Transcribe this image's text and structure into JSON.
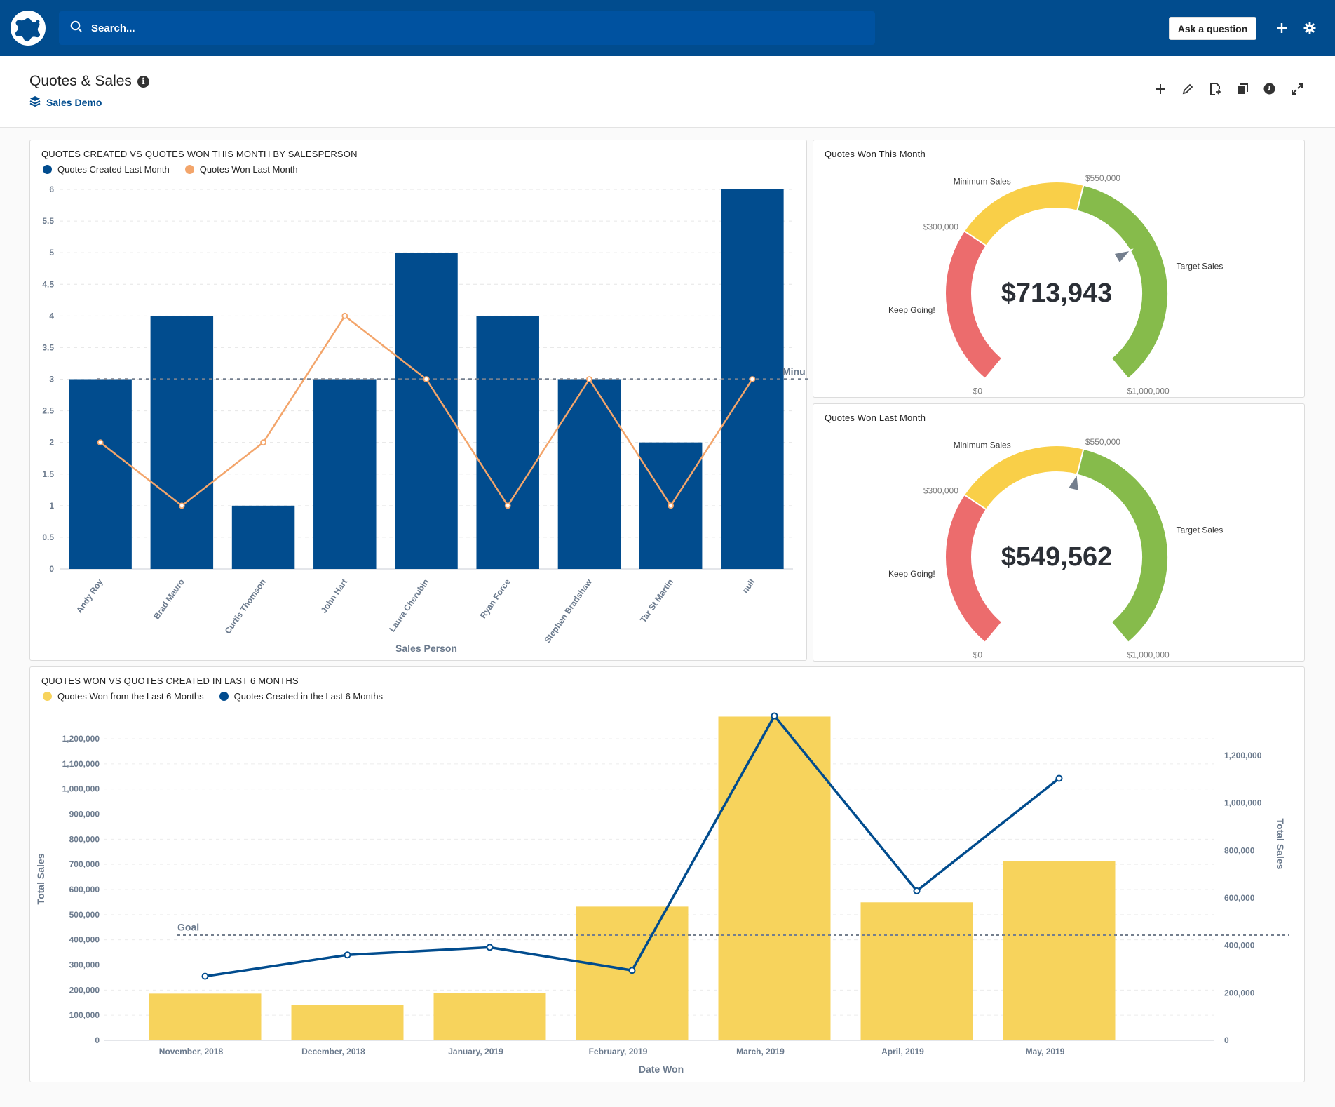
{
  "topbar": {
    "search_placeholder": "Search...",
    "ask_label": "Ask a question",
    "icons": [
      "add-icon",
      "gear-icon"
    ]
  },
  "header": {
    "title": "Quotes & Sales",
    "collection": "Sales Demo",
    "actions": [
      "add-icon",
      "pencil-icon",
      "share-icon",
      "duplicate-icon",
      "clock-icon",
      "fullscreen-icon"
    ]
  },
  "colors": {
    "brand": "#014c8e",
    "bar_blue": "#014c8e",
    "line_orange": "#f3a56b",
    "bar_yellow": "#f7d35c",
    "gauge_red": "#ec6c6d",
    "gauge_yellow": "#f9cf48",
    "gauge_green": "#86bb4b",
    "pointer": "#747f8e"
  },
  "chart_data": [
    {
      "type": "bar",
      "title": "QUOTES CREATED VS QUOTES WON THIS MONTH BY SALESPERSON",
      "xlabel": "Sales Person",
      "ylabel": "",
      "ylim": [
        0,
        6
      ],
      "yticks": [
        "0",
        "0.5",
        "1",
        "1.5",
        "2",
        "2.5",
        "3",
        "3.5",
        "4",
        "4.5",
        "5",
        "5.5",
        "6"
      ],
      "categories": [
        "Andy Roy",
        "Brad Mauro",
        "Curtis Thomson",
        "John Hart",
        "Laura Cherubin",
        "Ryan Force",
        "Stephen Bradshaw",
        "Tar St Martin",
        "null"
      ],
      "series": [
        {
          "name": "Quotes Created Last Month",
          "type": "bar",
          "values": [
            3,
            4,
            1,
            3,
            5,
            4,
            3,
            2,
            6
          ]
        },
        {
          "name": "Quotes Won Last Month",
          "type": "line",
          "values": [
            2,
            1,
            2,
            4,
            3,
            1,
            3,
            1,
            3
          ]
        }
      ],
      "reference_line": {
        "label": "Minu",
        "value": 3
      },
      "grid": true,
      "legend": "top-left"
    },
    {
      "type": "gauge",
      "title": "Quotes Won This Month",
      "value": 713943,
      "value_label": "$713,943",
      "range": [
        0,
        1000000
      ],
      "segments": [
        {
          "label": "Keep Going!",
          "from": 0,
          "to": 300000
        },
        {
          "label": "Minimum Sales",
          "from": 300000,
          "to": 550000
        },
        {
          "label": "Target Sales",
          "from": 550000,
          "to": 1000000
        }
      ],
      "tick_labels": [
        "$0",
        "$300,000",
        "$550,000",
        "$1,000,000"
      ]
    },
    {
      "type": "gauge",
      "title": "Quotes Won Last Month",
      "value": 549562,
      "value_label": "$549,562",
      "range": [
        0,
        1000000
      ],
      "segments": [
        {
          "label": "Keep Going!",
          "from": 0,
          "to": 300000
        },
        {
          "label": "Minimum Sales",
          "from": 300000,
          "to": 550000
        },
        {
          "label": "Target Sales",
          "from": 550000,
          "to": 1000000
        }
      ],
      "tick_labels": [
        "$0",
        "$300,000",
        "$550,000",
        "$1,000,000"
      ]
    },
    {
      "type": "bar",
      "title": "QUOTES WON VS QUOTES CREATED IN LAST 6 MONTHS",
      "xlabel": "Date Won",
      "ylabel": "Total Sales",
      "y2label": "Total Sales",
      "ylim": [
        0,
        1200000
      ],
      "y2lim": [
        0,
        1200000
      ],
      "yticks": [
        "0",
        "100,000",
        "200,000",
        "300,000",
        "400,000",
        "500,000",
        "600,000",
        "700,000",
        "800,000",
        "900,000",
        "1,000,000",
        "1,100,000",
        "1,200,000"
      ],
      "y2ticks": [
        "0",
        "200,000",
        "400,000",
        "600,000",
        "800,000",
        "1,000,000",
        "1,200,000"
      ],
      "categories": [
        "November, 2018",
        "December, 2018",
        "January, 2019",
        "February, 2019",
        "March, 2019",
        "April, 2019",
        "May, 2019"
      ],
      "series": [
        {
          "name": "Quotes Won from the Last 6 Months",
          "type": "bar",
          "axis": "left",
          "values": [
            186000,
            142000,
            188000,
            532000,
            1288000,
            549000,
            712000
          ]
        },
        {
          "name": "Quotes Created in the Last 6 Months",
          "type": "line",
          "axis": "right",
          "values": [
            270000,
            360000,
            392000,
            295000,
            1367000,
            630000,
            1104000
          ]
        }
      ],
      "reference_line": {
        "label": "Goal",
        "value": 420000
      },
      "grid": true,
      "legend": "top-left"
    }
  ]
}
